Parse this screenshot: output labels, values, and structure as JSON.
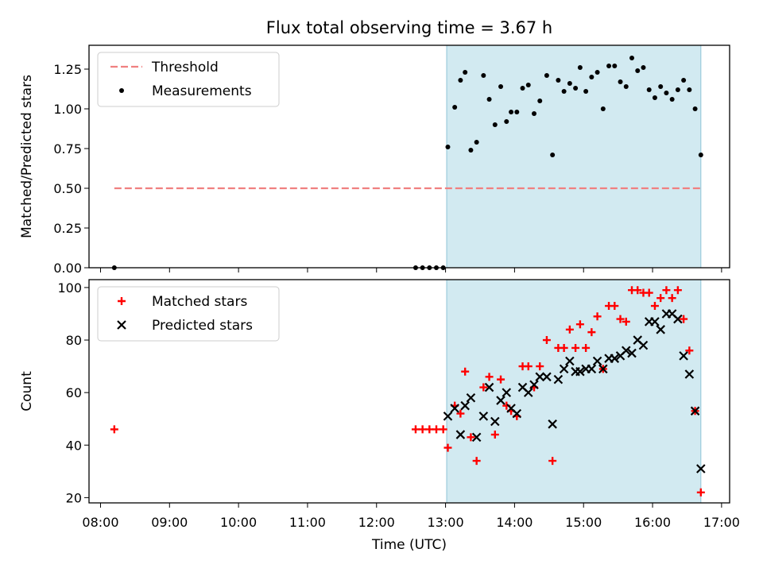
{
  "chart_data": {
    "title": "Flux total observing time = 3.67 h",
    "xlabel": "Time (UTC)",
    "x_ticks": [
      "08:00",
      "09:00",
      "10:00",
      "11:00",
      "12:00",
      "13:00",
      "14:00",
      "15:00",
      "16:00",
      "17:00"
    ],
    "xlim": [
      "07:50",
      "17:07"
    ],
    "shaded_interval": {
      "start": "13:01",
      "end": "16:42",
      "color": "#add8e6"
    },
    "colors": {
      "threshold": "#f08080",
      "measurements": "#000000",
      "matched": "#ff0000",
      "predicted": "#000000"
    },
    "panels": [
      {
        "type": "scatter",
        "ylabel": "Matched/Predicted stars",
        "ylim": [
          0,
          1.4
        ],
        "y_ticks": [
          "0.00",
          "0.25",
          "0.50",
          "0.75",
          "1.00",
          "1.25"
        ],
        "legend": {
          "position": "top-left",
          "entries": [
            "Threshold",
            "Measurements"
          ]
        },
        "threshold": {
          "name": "Threshold",
          "value": 0.5,
          "x_start": "08:12",
          "x_end": "16:42",
          "style": "dashed"
        },
        "series": [
          {
            "name": "Measurements",
            "marker": "dot",
            "points": [
              [
                "08:12",
                0.0
              ],
              [
                "12:34",
                0.0
              ],
              [
                "12:40",
                0.0
              ],
              [
                "12:46",
                0.0
              ],
              [
                "12:52",
                0.0
              ],
              [
                "12:58",
                0.0
              ],
              [
                "13:02",
                0.76
              ],
              [
                "13:08",
                1.01
              ],
              [
                "13:13",
                1.18
              ],
              [
                "13:17",
                1.23
              ],
              [
                "13:22",
                0.74
              ],
              [
                "13:27",
                0.79
              ],
              [
                "13:33",
                1.21
              ],
              [
                "13:38",
                1.06
              ],
              [
                "13:43",
                0.9
              ],
              [
                "13:48",
                1.14
              ],
              [
                "13:53",
                0.92
              ],
              [
                "13:57",
                0.98
              ],
              [
                "14:02",
                0.98
              ],
              [
                "14:07",
                1.13
              ],
              [
                "14:12",
                1.15
              ],
              [
                "14:17",
                0.97
              ],
              [
                "14:22",
                1.05
              ],
              [
                "14:28",
                1.21
              ],
              [
                "14:33",
                0.71
              ],
              [
                "14:38",
                1.18
              ],
              [
                "14:43",
                1.11
              ],
              [
                "14:48",
                1.16
              ],
              [
                "14:53",
                1.13
              ],
              [
                "14:57",
                1.26
              ],
              [
                "15:02",
                1.11
              ],
              [
                "15:07",
                1.2
              ],
              [
                "15:12",
                1.23
              ],
              [
                "15:17",
                1.0
              ],
              [
                "15:22",
                1.27
              ],
              [
                "15:27",
                1.27
              ],
              [
                "15:32",
                1.17
              ],
              [
                "15:37",
                1.14
              ],
              [
                "15:42",
                1.32
              ],
              [
                "15:47",
                1.24
              ],
              [
                "15:52",
                1.26
              ],
              [
                "15:57",
                1.12
              ],
              [
                "16:02",
                1.07
              ],
              [
                "16:07",
                1.14
              ],
              [
                "16:12",
                1.1
              ],
              [
                "16:17",
                1.06
              ],
              [
                "16:22",
                1.12
              ],
              [
                "16:27",
                1.18
              ],
              [
                "16:32",
                1.12
              ],
              [
                "16:37",
                1.0
              ],
              [
                "16:42",
                0.71
              ]
            ]
          }
        ]
      },
      {
        "type": "scatter",
        "ylabel": "Count",
        "ylim": [
          18,
          103
        ],
        "y_ticks": [
          "20",
          "40",
          "60",
          "80",
          "100"
        ],
        "legend": {
          "position": "top-left",
          "entries": [
            "Matched stars",
            "Predicted stars"
          ]
        },
        "series": [
          {
            "name": "Matched stars",
            "marker": "plus",
            "points": [
              [
                "08:12",
                46
              ],
              [
                "12:34",
                46
              ],
              [
                "12:40",
                46
              ],
              [
                "12:46",
                46
              ],
              [
                "12:52",
                46
              ],
              [
                "12:58",
                46
              ],
              [
                "13:02",
                39
              ],
              [
                "13:08",
                55
              ],
              [
                "13:13",
                52
              ],
              [
                "13:17",
                68
              ],
              [
                "13:22",
                43
              ],
              [
                "13:27",
                34
              ],
              [
                "13:33",
                62
              ],
              [
                "13:38",
                66
              ],
              [
                "13:43",
                44
              ],
              [
                "13:48",
                65
              ],
              [
                "13:53",
                55
              ],
              [
                "13:57",
                53
              ],
              [
                "14:02",
                51
              ],
              [
                "14:07",
                70
              ],
              [
                "14:12",
                70
              ],
              [
                "14:17",
                62
              ],
              [
                "14:22",
                70
              ],
              [
                "14:28",
                80
              ],
              [
                "14:33",
                34
              ],
              [
                "14:38",
                77
              ],
              [
                "14:43",
                77
              ],
              [
                "14:48",
                84
              ],
              [
                "14:53",
                77
              ],
              [
                "14:57",
                86
              ],
              [
                "15:02",
                77
              ],
              [
                "15:07",
                83
              ],
              [
                "15:12",
                89
              ],
              [
                "15:17",
                69
              ],
              [
                "15:22",
                93
              ],
              [
                "15:27",
                93
              ],
              [
                "15:32",
                88
              ],
              [
                "15:37",
                87
              ],
              [
                "15:42",
                99
              ],
              [
                "15:47",
                99
              ],
              [
                "15:52",
                98
              ],
              [
                "15:57",
                98
              ],
              [
                "16:02",
                93
              ],
              [
                "16:07",
                96
              ],
              [
                "16:12",
                99
              ],
              [
                "16:17",
                96
              ],
              [
                "16:22",
                99
              ],
              [
                "16:27",
                88
              ],
              [
                "16:32",
                76
              ],
              [
                "16:37",
                53
              ],
              [
                "16:42",
                22
              ]
            ]
          },
          {
            "name": "Predicted stars",
            "marker": "x",
            "points": [
              [
                "13:02",
                51
              ],
              [
                "13:08",
                54
              ],
              [
                "13:13",
                44
              ],
              [
                "13:17",
                55
              ],
              [
                "13:22",
                58
              ],
              [
                "13:27",
                43
              ],
              [
                "13:33",
                51
              ],
              [
                "13:38",
                62
              ],
              [
                "13:43",
                49
              ],
              [
                "13:48",
                57
              ],
              [
                "13:53",
                60
              ],
              [
                "13:57",
                54
              ],
              [
                "14:02",
                52
              ],
              [
                "14:07",
                62
              ],
              [
                "14:12",
                60
              ],
              [
                "14:17",
                63
              ],
              [
                "14:22",
                66
              ],
              [
                "14:28",
                66
              ],
              [
                "14:33",
                48
              ],
              [
                "14:38",
                65
              ],
              [
                "14:43",
                69
              ],
              [
                "14:48",
                72
              ],
              [
                "14:53",
                68
              ],
              [
                "14:57",
                68
              ],
              [
                "15:02",
                69
              ],
              [
                "15:07",
                69
              ],
              [
                "15:12",
                72
              ],
              [
                "15:17",
                69
              ],
              [
                "15:22",
                73
              ],
              [
                "15:27",
                73
              ],
              [
                "15:32",
                74
              ],
              [
                "15:37",
                76
              ],
              [
                "15:42",
                75
              ],
              [
                "15:47",
                80
              ],
              [
                "15:52",
                78
              ],
              [
                "15:57",
                87
              ],
              [
                "16:02",
                87
              ],
              [
                "16:07",
                84
              ],
              [
                "16:12",
                90
              ],
              [
                "16:17",
                90
              ],
              [
                "16:22",
                88
              ],
              [
                "16:27",
                74
              ],
              [
                "16:32",
                67
              ],
              [
                "16:37",
                53
              ],
              [
                "16:42",
                31
              ]
            ]
          }
        ]
      }
    ]
  }
}
